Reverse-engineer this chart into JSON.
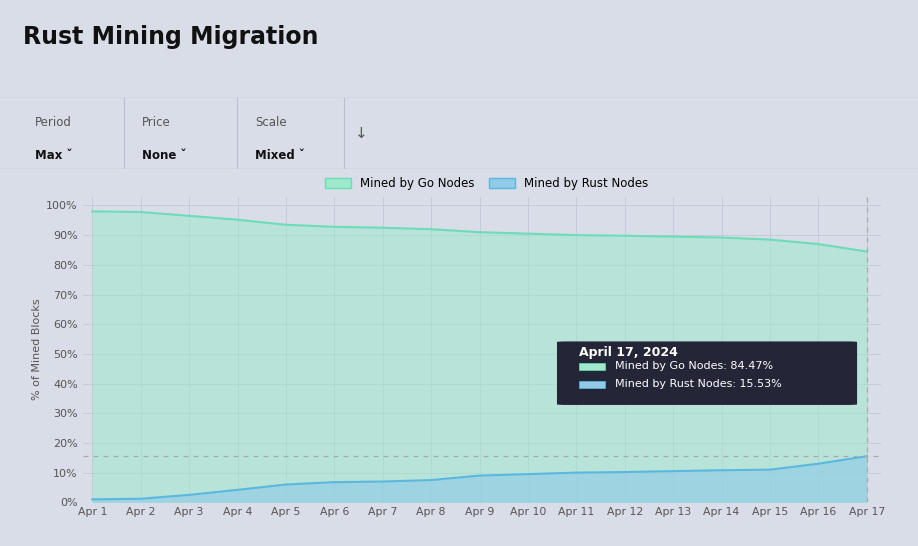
{
  "title": "Rust Mining Migration",
  "ylabel": "% of Mined Blocks",
  "background_color": "#d8dde8",
  "plot_bg_color": "#d8dde8",
  "header_bg_color": "#d8dde8",
  "grid_color": "#c0c8d5",
  "x_labels": [
    "Apr 1",
    "Apr 2",
    "Apr 3",
    "Apr 4",
    "Apr 5",
    "Apr 6",
    "Apr 7",
    "Apr 8",
    "Apr 9",
    "Apr 10",
    "Apr 11",
    "Apr 12",
    "Apr 13",
    "Apr 14",
    "Apr 15",
    "Apr 16",
    "Apr 17"
  ],
  "go_nodes": [
    98.0,
    97.8,
    96.5,
    95.2,
    93.5,
    92.8,
    92.5,
    92.0,
    91.0,
    90.5,
    90.0,
    89.8,
    89.5,
    89.2,
    88.5,
    87.0,
    84.47
  ],
  "rust_nodes": [
    1.0,
    1.2,
    2.5,
    4.2,
    6.0,
    6.8,
    7.0,
    7.5,
    9.0,
    9.5,
    10.0,
    10.2,
    10.5,
    10.8,
    11.0,
    13.0,
    15.53
  ],
  "go_line_color": "#6ddcb8",
  "rust_line_color": "#5ab8e0",
  "go_fill_color": "#9ee8cc",
  "rust_fill_color": "#90cce8",
  "dashed_line_y": 15.53,
  "tooltip_date": "April 17, 2024",
  "tooltip_go": "Mined by Go Nodes: 84.47%",
  "tooltip_rust": "Mined by Rust Nodes: 15.53%",
  "legend_go": "Mined by Go Nodes",
  "legend_rust": "Mined by Rust Nodes",
  "ylim": [
    0,
    103
  ],
  "yticks": [
    0,
    10,
    20,
    30,
    40,
    50,
    60,
    70,
    80,
    90,
    100
  ],
  "ytick_labels": [
    "0%",
    "10%",
    "20%",
    "30%",
    "40%",
    "50%",
    "60%",
    "70%",
    "80%",
    "90%",
    "100%"
  ],
  "separator_color": "#b8bece",
  "title_fontsize": 17,
  "ctrl_fontsize": 8.5
}
